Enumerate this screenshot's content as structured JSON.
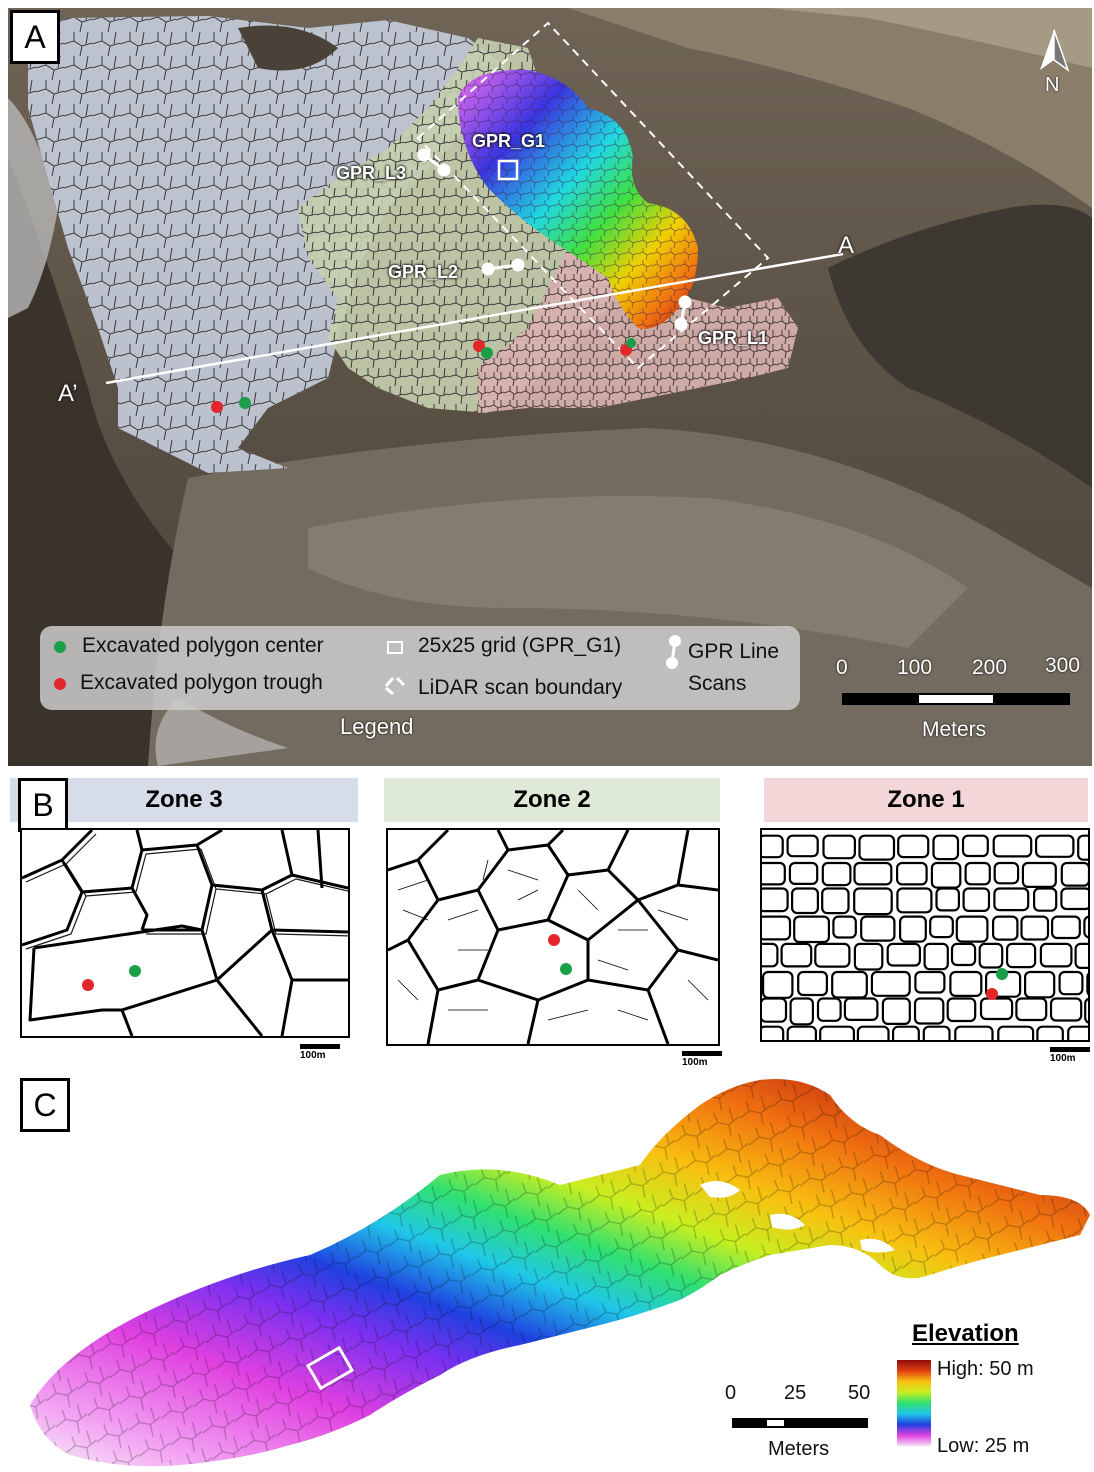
{
  "panels": {
    "a": "A",
    "b": "B",
    "c": "C"
  },
  "map_a": {
    "north": "N",
    "labels": {
      "gpr_g1": "GPR_G1",
      "gpr_l3": "GPR_L3",
      "gpr_l2": "GPR_L2",
      "gpr_l1": "GPR_L1",
      "section_a": "A",
      "section_a_prime": "A’"
    },
    "legend": {
      "center": "Excavated polygon center",
      "trough": "Excavated polygon trough",
      "grid": "25x25 grid (GPR_G1)",
      "lidar": "LiDAR scan boundary",
      "line_scans_1": "GPR Line",
      "line_scans_2": "Scans",
      "title": "Legend"
    },
    "scale": {
      "ticks": [
        "0",
        "100",
        "200",
        "300"
      ],
      "unit": "Meters"
    },
    "colors": {
      "zone3": "#c3cbd9",
      "zone2": "#c5cfae",
      "zone1": "#d8b2b0",
      "center_dot": "#1a9e48",
      "trough_dot": "#e3262a"
    }
  },
  "zones": [
    {
      "title": "Zone 3",
      "scale": "100m",
      "header_color": "#d6dde9"
    },
    {
      "title": "Zone 2",
      "scale": "100m",
      "header_color": "#dfe9d8"
    },
    {
      "title": "Zone 1",
      "scale": "100m",
      "header_color": "#f3d6d8"
    }
  ],
  "map_c": {
    "elevation_title": "Elevation",
    "high": "High: 50 m",
    "low": "Low: 25 m",
    "scale": {
      "ticks": [
        "0",
        "25",
        "50"
      ],
      "unit": "Meters"
    }
  }
}
